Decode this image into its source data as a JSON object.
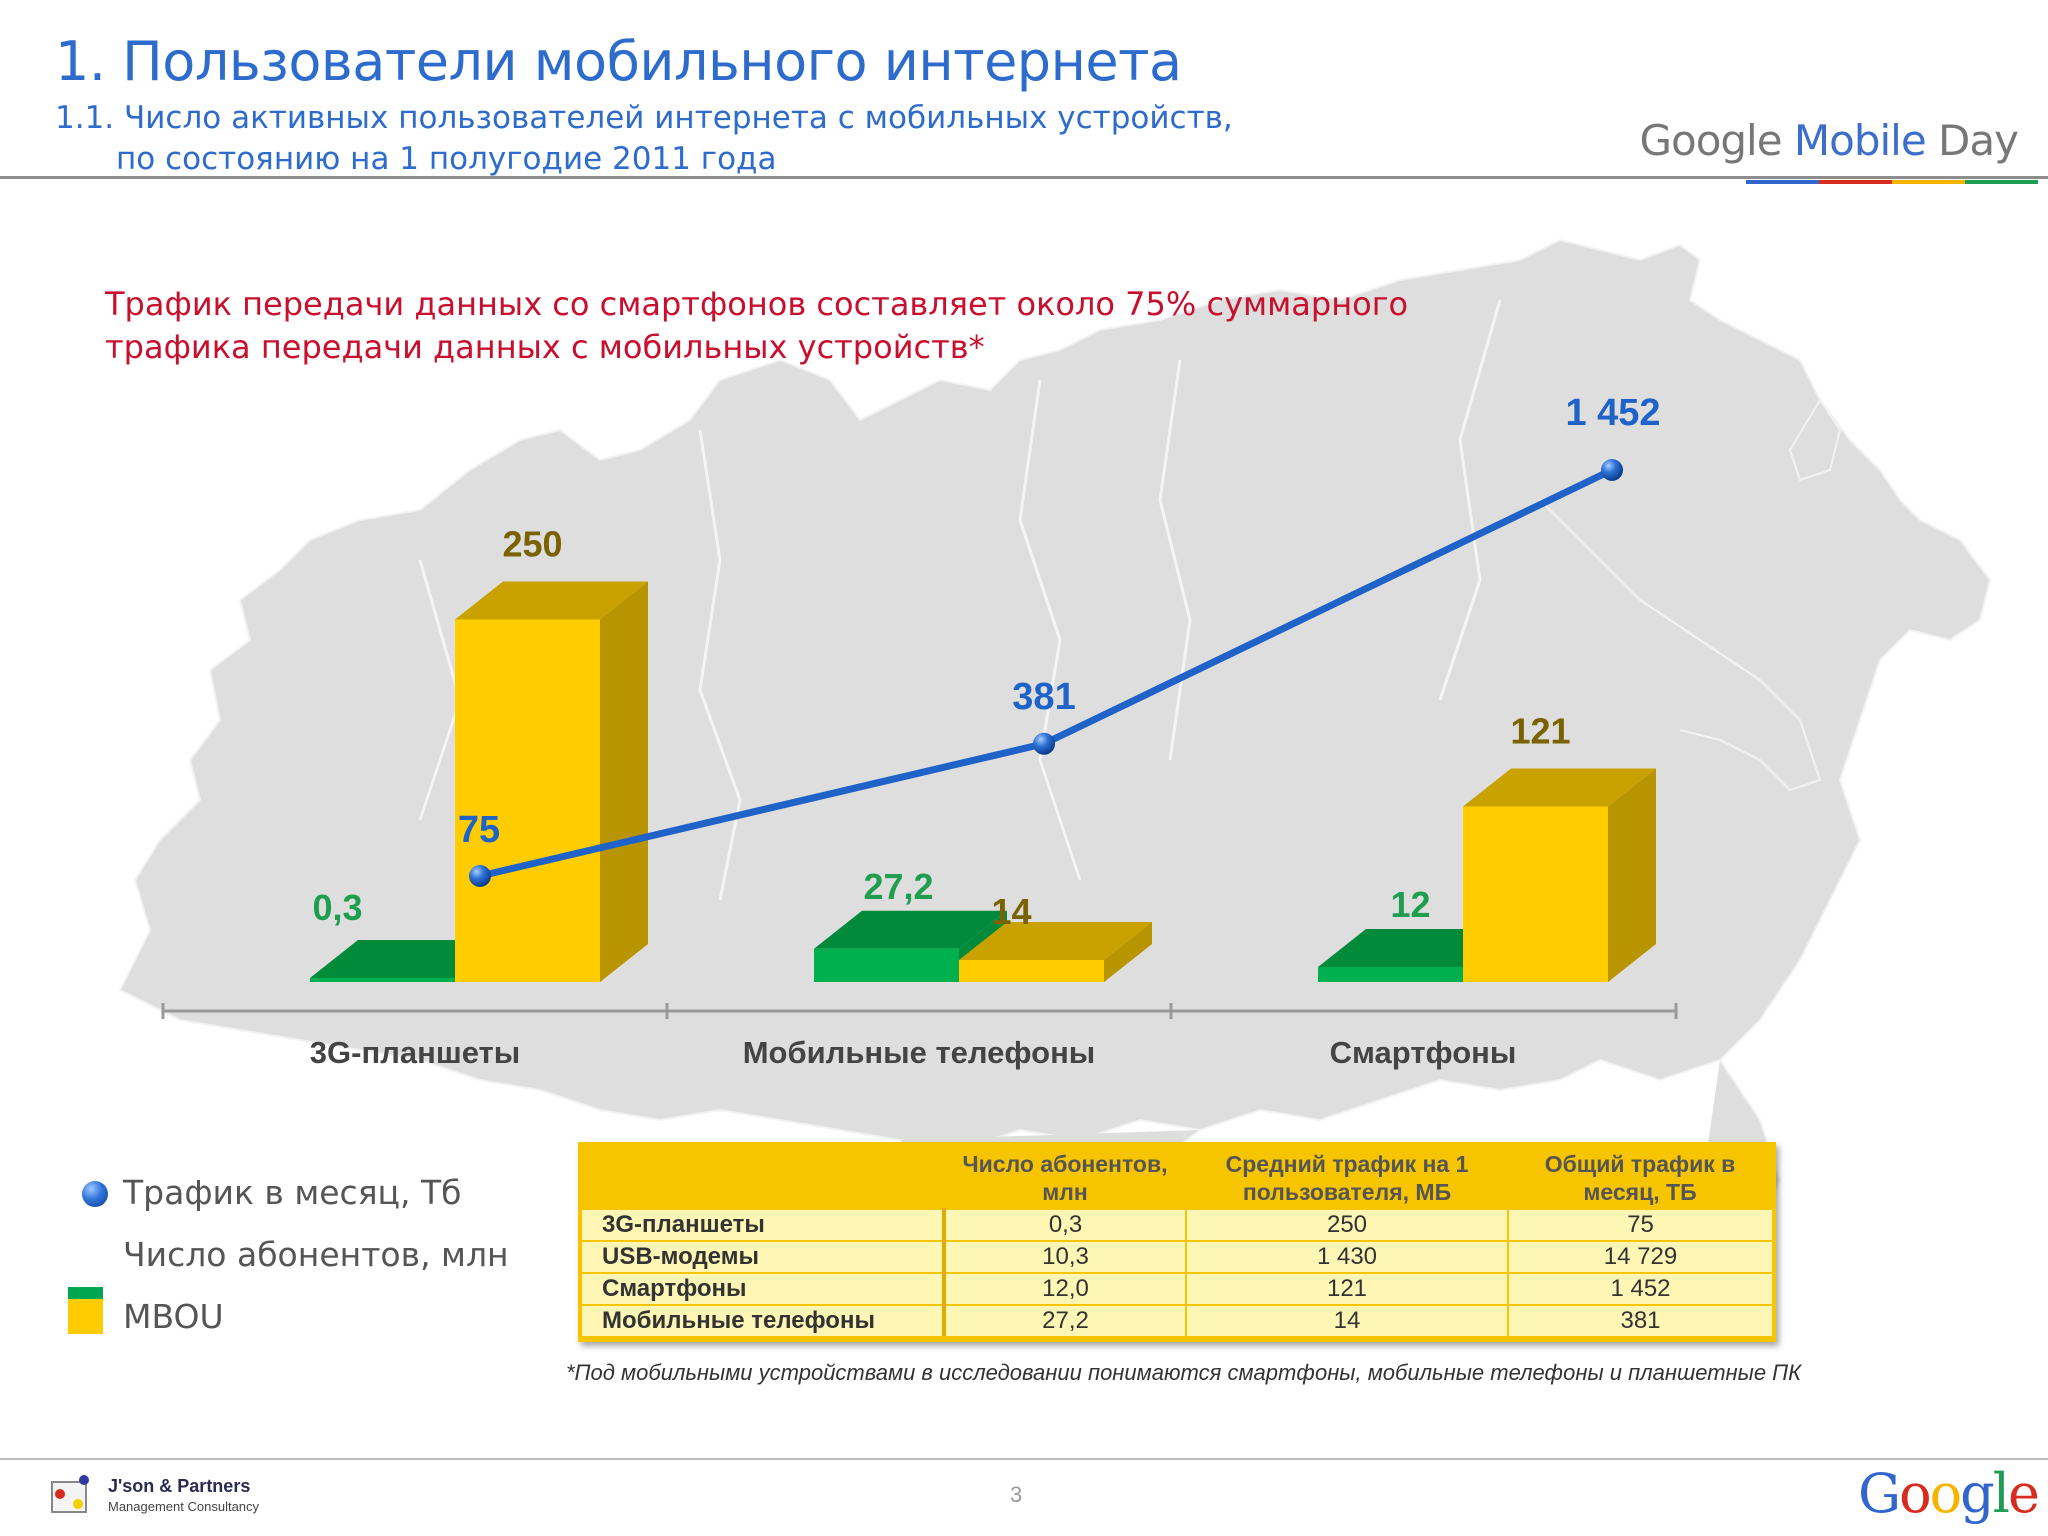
{
  "header": {
    "title": "1. Пользователи мобильного интернета",
    "subtitle_line1": "1.1. Число активных пользователей интернета с мобильных  устройств,",
    "subtitle_line2": "по состоянию на 1 полугодие 2011 года",
    "brand_part1": "Google ",
    "brand_part2": "Mobile",
    "brand_part3": " Day"
  },
  "headline": {
    "line1": "Трафик передачи данных со смартфонов  составляет около 75% суммарного",
    "line2": "трафика передачи данных с мобильных устройств*"
  },
  "chart_data": {
    "type": "bar",
    "categories": [
      "3G-планшеты",
      "Мобильные телефоны",
      "Смартфоны"
    ],
    "series": [
      {
        "name": "Число абонентов, млн",
        "values": [
          0.3,
          27.2,
          12
        ],
        "labels": [
          "0,3",
          "27,2",
          "12"
        ]
      },
      {
        "name": "MBOU",
        "values": [
          250,
          14,
          121
        ],
        "labels": [
          "250",
          "14",
          "121"
        ]
      }
    ],
    "line_series": {
      "name": "Трафик в месяц, Тб",
      "values": [
        75,
        381,
        1452
      ],
      "labels": [
        "75",
        "381",
        "1 452"
      ]
    },
    "colors": {
      "green_front": "#00b04f",
      "green_top": "#008a3a",
      "yellow_front": "#ffcc00",
      "yellow_side": "#b89400",
      "yellow_top": "#c9a200",
      "line": "#1f63c9",
      "label_green": "#1e9e4e",
      "label_olive": "#7a6200",
      "label_blue": "#1f63c9"
    }
  },
  "legend": [
    {
      "label": "Трафик в месяц, Тб",
      "marker": "blue-sphere"
    },
    {
      "label": "Число абонентов, млн",
      "marker": "green-square",
      "color": "#00a651"
    },
    {
      "label": "MBOU",
      "marker": "yellow-square",
      "color": "#ffcc00"
    }
  ],
  "table": {
    "headers": [
      "",
      "Число абонентов, млн",
      "Средний трафик на 1 пользователя, МБ",
      "Общий трафик в месяц, ТБ"
    ],
    "rows": [
      [
        "3G-планшеты",
        "0,3",
        "250",
        "75"
      ],
      [
        "USB-модемы",
        "10,3",
        "1 430",
        "14 729"
      ],
      [
        "Смартфоны",
        "12,0",
        "121",
        "1 452"
      ],
      [
        "Мобильные телефоны",
        "27,2",
        "14",
        "381"
      ]
    ]
  },
  "footnote": "*Под мобильными устройствами в исследовании понимаются смартфоны, мобильные телефоны и планшетные ПК",
  "footer": {
    "company": "J'son & Partners",
    "company_sub": "Management Consultancy",
    "page": "3",
    "google": "Google",
    "google_colors": [
      "#3366cc",
      "#d62d20",
      "#f4b400",
      "#3366cc",
      "#1f9d55",
      "#d62d20"
    ]
  }
}
